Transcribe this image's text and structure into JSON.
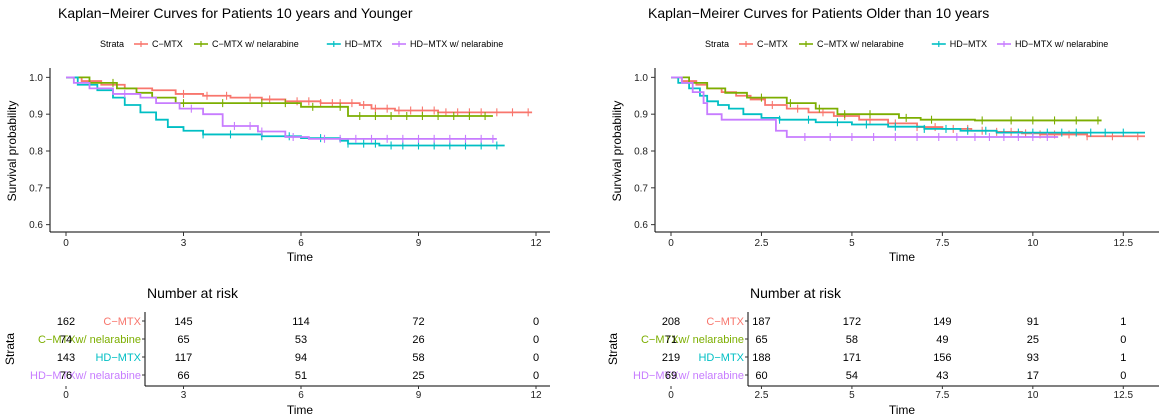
{
  "chart_data": [
    {
      "type": "line",
      "title": "Kaplan−Meirer Curves for Patients 10 years and Younger",
      "xlabel": "Time",
      "ylabel": "Survival probability",
      "xlim": [
        0,
        12
      ],
      "ylim": [
        0.58,
        1.02
      ],
      "xticks": [
        0,
        3,
        6,
        9,
        12
      ],
      "yticks": [
        0.6,
        0.7,
        0.8,
        0.9,
        1.0
      ],
      "ytick_labels": [
        "0.6",
        "0.7",
        "0.8",
        "0.9",
        "1.0"
      ],
      "legend_title": "Strata",
      "legend_position": "top",
      "series": [
        {
          "name": "C−MTX",
          "color": "#F8766D",
          "x": [
            0,
            0.4,
            0.9,
            1.5,
            2.2,
            2.8,
            3.5,
            4.2,
            5.0,
            5.6,
            6.5,
            7.5,
            7.8,
            8.4,
            9.5,
            11.9
          ],
          "y": [
            1.0,
            0.99,
            0.98,
            0.97,
            0.965,
            0.955,
            0.95,
            0.945,
            0.94,
            0.935,
            0.93,
            0.925,
            0.915,
            0.91,
            0.905,
            0.905
          ],
          "censor_x": [
            3.0,
            3.6,
            4.1,
            4.7,
            5.2,
            5.9,
            6.2,
            6.5,
            6.8,
            7.0,
            7.3,
            7.6,
            7.9,
            8.2,
            8.5,
            8.8,
            9.1,
            9.4,
            9.7,
            10.0,
            10.3,
            10.6,
            11.0,
            11.4,
            11.8
          ]
        },
        {
          "name": "C−MTX w/ nelarabine",
          "color": "#7CAE00",
          "x": [
            0,
            0.6,
            1.3,
            1.8,
            2.2,
            2.8,
            6.0,
            7.2,
            10.9
          ],
          "y": [
            1.0,
            0.985,
            0.97,
            0.958,
            0.945,
            0.93,
            0.92,
            0.895,
            0.895
          ],
          "censor_x": [
            1.2,
            3.0,
            4.0,
            5.0,
            5.6,
            6.3,
            7.0,
            7.5,
            7.9,
            8.3,
            8.7,
            9.1,
            9.5,
            9.9,
            10.3,
            10.7
          ]
        },
        {
          "name": "HD−MTX",
          "color": "#00BFC4",
          "x": [
            0,
            0.3,
            0.8,
            1.2,
            1.5,
            1.9,
            2.3,
            2.6,
            3.0,
            3.5,
            5.0,
            6.0,
            7.0,
            7.2,
            8.0,
            11.2
          ],
          "y": [
            1.0,
            0.98,
            0.965,
            0.945,
            0.925,
            0.905,
            0.885,
            0.865,
            0.855,
            0.845,
            0.84,
            0.835,
            0.828,
            0.82,
            0.815,
            0.815
          ],
          "censor_x": [
            3.5,
            4.2,
            5.0,
            5.7,
            6.5,
            7.2,
            7.6,
            7.9,
            8.3,
            8.6,
            9.0,
            9.4,
            9.8,
            10.2,
            10.6,
            11.0
          ]
        },
        {
          "name": "HD−MTX w/ nelarabine",
          "color": "#C77CFF",
          "x": [
            0,
            0.2,
            0.6,
            1.2,
            1.9,
            2.3,
            2.9,
            3.5,
            4.0,
            4.5,
            4.9,
            5.6,
            6.2,
            11.0
          ],
          "y": [
            1.0,
            0.985,
            0.97,
            0.955,
            0.945,
            0.93,
            0.915,
            0.9,
            0.868,
            0.868,
            0.853,
            0.838,
            0.833,
            0.833
          ],
          "censor_x": [
            1.5,
            3.2,
            4.3,
            4.7,
            5.0,
            5.8,
            6.6,
            7.0,
            7.4,
            7.8,
            8.2,
            8.6,
            9.0,
            9.4,
            9.8,
            10.2,
            10.6,
            10.9
          ]
        }
      ],
      "risk_table": {
        "title": "Number at risk",
        "ylabel": "Strata",
        "xlabel": "Time",
        "times": [
          0,
          3,
          6,
          9,
          12
        ],
        "rows": [
          {
            "label": "C−MTX",
            "color": "#F8766D",
            "values": [
              "162",
              "145",
              "114",
              "72",
              "0"
            ]
          },
          {
            "label": "C−MTXw/ nelarabine",
            "color": "#7CAE00",
            "values": [
              "74",
              "65",
              "53",
              "26",
              "0"
            ]
          },
          {
            "label": "HD−MTX",
            "color": "#00BFC4",
            "values": [
              "143",
              "117",
              "94",
              "58",
              "0"
            ]
          },
          {
            "label": "HD−MTXw/ nelarabine",
            "color": "#C77CFF",
            "values": [
              "76",
              "66",
              "51",
              "25",
              "0"
            ]
          }
        ]
      }
    },
    {
      "type": "line",
      "title": "Kaplan−Meirer Curves for Patients Older than 10 years",
      "xlabel": "Time",
      "ylabel": "Survival probability",
      "xlim": [
        0,
        13.1
      ],
      "ylim": [
        0.58,
        1.02
      ],
      "xticks": [
        0,
        2.5,
        5,
        7.5,
        10,
        12.5
      ],
      "yticks": [
        0.6,
        0.7,
        0.8,
        0.9,
        1.0
      ],
      "ytick_labels": [
        "0.6",
        "0.7",
        "0.8",
        "0.9",
        "1.0"
      ],
      "legend_title": "Strata",
      "legend_position": "top",
      "series": [
        {
          "name": "C−MTX",
          "color": "#F8766D",
          "x": [
            0,
            0.3,
            0.7,
            1.0,
            1.4,
            1.8,
            2.2,
            2.6,
            3.2,
            3.8,
            4.5,
            5.2,
            6.0,
            6.8,
            7.5,
            8.3,
            9.0,
            9.7,
            10.2,
            11.5,
            13.1
          ],
          "y": [
            1.0,
            0.99,
            0.98,
            0.97,
            0.96,
            0.95,
            0.94,
            0.925,
            0.915,
            0.905,
            0.895,
            0.885,
            0.875,
            0.865,
            0.86,
            0.855,
            0.852,
            0.848,
            0.845,
            0.84,
            0.84
          ],
          "censor_x": [
            2.8,
            3.5,
            4.2,
            4.8,
            5.5,
            6.2,
            6.8,
            7.3,
            7.8,
            8.2,
            8.6,
            9.0,
            9.4,
            9.8,
            10.2,
            10.6,
            11.0,
            11.5,
            12.2,
            12.9
          ]
        },
        {
          "name": "C−MTX w/ nelarabine",
          "color": "#7CAE00",
          "x": [
            0,
            0.5,
            1.0,
            1.5,
            2.1,
            3.2,
            4.0,
            4.6,
            6.3,
            6.9,
            8.4,
            11.9
          ],
          "y": [
            1.0,
            0.985,
            0.97,
            0.958,
            0.945,
            0.93,
            0.915,
            0.9,
            0.89,
            0.885,
            0.883,
            0.883
          ],
          "censor_x": [
            2.5,
            3.3,
            4.1,
            4.8,
            5.5,
            6.5,
            7.2,
            8.6,
            9.4,
            10.0,
            10.6,
            11.2,
            11.8
          ]
        },
        {
          "name": "HD−MTX",
          "color": "#00BFC4",
          "x": [
            0,
            0.2,
            0.5,
            0.8,
            1.0,
            1.3,
            1.6,
            2.0,
            2.5,
            3.0,
            4.0,
            5.0,
            6.0,
            7.0,
            8.0,
            9.0,
            13.1
          ],
          "y": [
            1.0,
            0.985,
            0.97,
            0.95,
            0.935,
            0.925,
            0.915,
            0.9,
            0.89,
            0.885,
            0.878,
            0.872,
            0.866,
            0.86,
            0.855,
            0.85,
            0.85
          ],
          "censor_x": [
            3.0,
            3.8,
            4.6,
            5.4,
            6.2,
            7.0,
            7.6,
            8.2,
            8.7,
            9.2,
            9.6,
            10.0,
            10.4,
            10.8,
            11.2,
            11.6,
            12.0,
            12.5
          ]
        },
        {
          "name": "HD−MTX w/ nelarabine",
          "color": "#C77CFF",
          "x": [
            0,
            0.3,
            0.6,
            0.9,
            1.0,
            1.4,
            2.9,
            3.2,
            10.7
          ],
          "y": [
            1.0,
            0.985,
            0.96,
            0.93,
            0.9,
            0.885,
            0.855,
            0.838,
            0.838
          ],
          "censor_x": [
            3.7,
            4.4,
            5.0,
            5.6,
            6.2,
            6.8,
            7.4,
            7.9,
            8.4,
            8.8,
            9.2,
            9.6,
            10.0,
            10.4
          ]
        }
      ],
      "risk_table": {
        "title": "Number at risk",
        "ylabel": "Strata",
        "xlabel": "Time",
        "times": [
          0,
          2.5,
          5,
          7.5,
          10,
          12.5
        ],
        "rows": [
          {
            "label": "C−MTX",
            "color": "#F8766D",
            "values": [
              "208",
              "187",
              "172",
              "149",
              "91",
              "1"
            ]
          },
          {
            "label": "C−MTXw/ nelarabine",
            "color": "#7CAE00",
            "values": [
              "71",
              "65",
              "58",
              "49",
              "25",
              "0"
            ]
          },
          {
            "label": "HD−MTX",
            "color": "#00BFC4",
            "values": [
              "219",
              "188",
              "171",
              "156",
              "93",
              "1"
            ]
          },
          {
            "label": "HD−MTXw/ nelarabine",
            "color": "#C77CFF",
            "values": [
              "69",
              "60",
              "54",
              "43",
              "17",
              "0"
            ]
          }
        ]
      }
    }
  ]
}
